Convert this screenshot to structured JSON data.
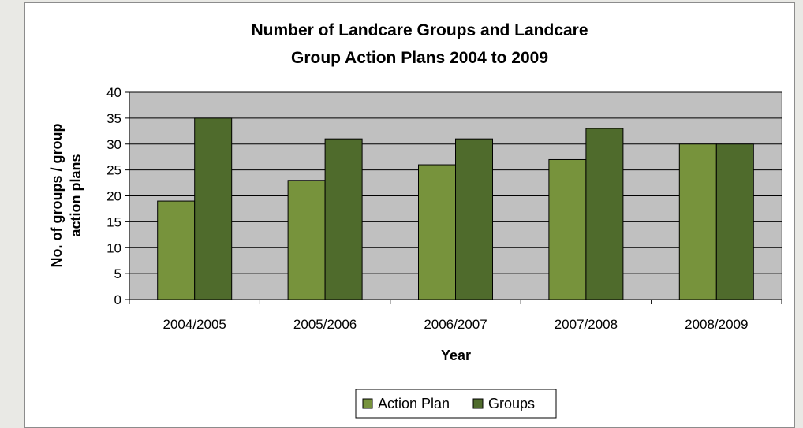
{
  "chart_data": {
    "type": "bar",
    "title_lines": [
      "Number of Landcare Groups and Landcare",
      "Group Action Plans 2004 to 2009"
    ],
    "xlabel": "Year",
    "ylabel_lines": [
      "No. of groups / group",
      "action plans"
    ],
    "categories": [
      "2004/2005",
      "2005/2006",
      "2006/2007",
      "2007/2008",
      "2008/2009"
    ],
    "series": [
      {
        "name": "Action Plan",
        "values": [
          19,
          23,
          26,
          27,
          30
        ],
        "color": "#77933c"
      },
      {
        "name": "Groups",
        "values": [
          35,
          31,
          31,
          33,
          30
        ],
        "color": "#4f6b2c"
      }
    ],
    "ylim": [
      0,
      40
    ],
    "yticks": [
      0,
      5,
      10,
      15,
      20,
      25,
      30,
      35,
      40
    ],
    "grid": true,
    "plot_background": "#c0c0c0",
    "legend_position": "bottom"
  }
}
